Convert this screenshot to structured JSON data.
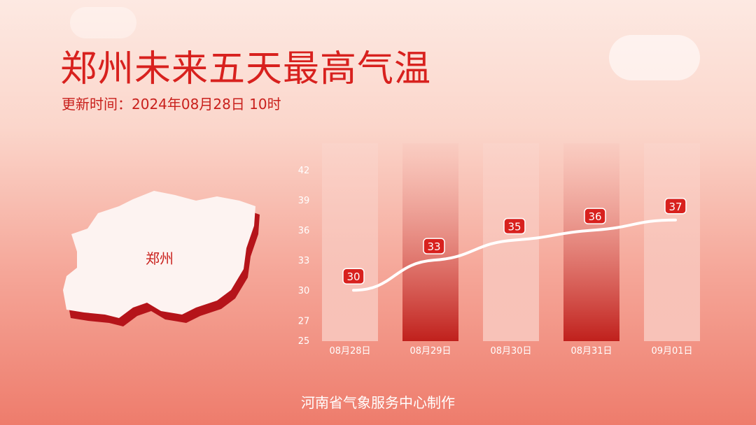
{
  "header": {
    "title": "郑州未来五天最高气温",
    "subtitle": "更新时间：2024年08月28日 10时"
  },
  "map": {
    "label": "郑州"
  },
  "footer": "河南省气象服务中心制作",
  "colors": {
    "accent": "#d8211e",
    "line": "#ffffff",
    "bar_light": "#f8c2b8",
    "bar_dark": "#c0201c"
  },
  "chart_data": {
    "type": "line",
    "categories": [
      "08月28日",
      "08月29日",
      "08月30日",
      "08月31日",
      "09月01日"
    ],
    "values": [
      30,
      33,
      35,
      36,
      37
    ],
    "yticks": [
      25,
      27,
      30,
      33,
      36,
      39,
      42
    ],
    "ylim": [
      25,
      42
    ],
    "grid": false,
    "title": "",
    "xlabel": "",
    "ylabel": ""
  }
}
